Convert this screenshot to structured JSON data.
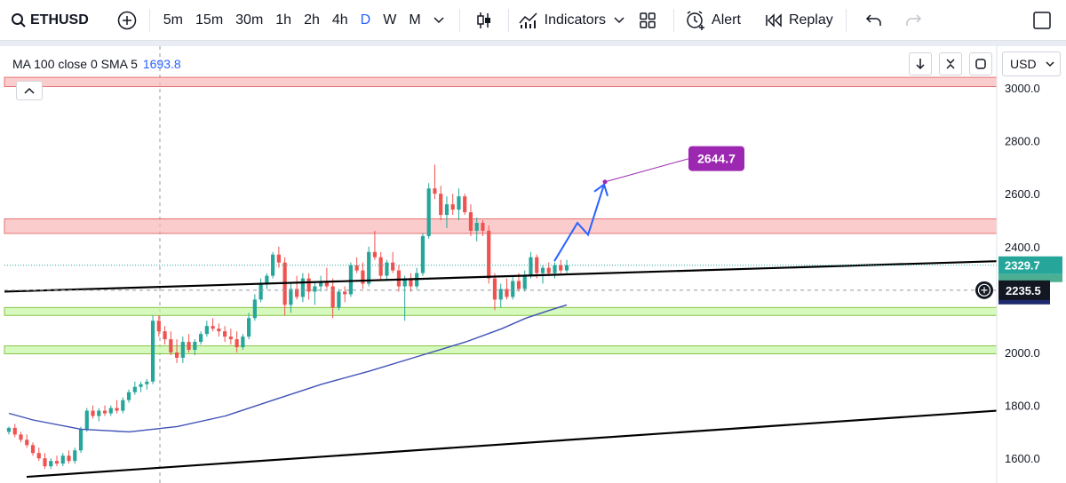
{
  "toolbar": {
    "symbol": "ETHUSD",
    "timeframes": [
      "5m",
      "15m",
      "30m",
      "1h",
      "2h",
      "4h",
      "D",
      "W",
      "M"
    ],
    "active_timeframe": "D",
    "indicators_label": "Indicators",
    "alert_label": "Alert",
    "replay_label": "Replay"
  },
  "legend": {
    "indicator": "MA 100 close 0 SMA 5",
    "value": "1693.8"
  },
  "currency": "USD",
  "colors": {
    "up": "#26a69a",
    "down": "#ef5350",
    "ma": "#3f51b5",
    "accent": "#2962ff",
    "target": "#9c27b0",
    "zone_red": "#f8bbbb",
    "zone_green": "#c8f7a8"
  },
  "chart_data": {
    "type": "candlestick",
    "symbol": "ETHUSD",
    "interval": "D",
    "y_axis": {
      "ticks": [
        "3000.0",
        "2800.0",
        "2600.0",
        "2400.0",
        "2000.0",
        "1800.0",
        "1600.0"
      ],
      "range": [
        1540,
        3150
      ]
    },
    "badges": {
      "last_price": "2329.7",
      "crosshair_price": "2235.5",
      "target": "2644.7"
    },
    "candles": [
      [
        1700,
        1720,
        1690,
        1715
      ],
      [
        1715,
        1730,
        1680,
        1690
      ],
      [
        1690,
        1700,
        1660,
        1670
      ],
      [
        1670,
        1690,
        1640,
        1650
      ],
      [
        1650,
        1660,
        1610,
        1620
      ],
      [
        1620,
        1640,
        1590,
        1600
      ],
      [
        1600,
        1620,
        1560,
        1570
      ],
      [
        1570,
        1600,
        1560,
        1590
      ],
      [
        1590,
        1610,
        1570,
        1580
      ],
      [
        1580,
        1620,
        1570,
        1610
      ],
      [
        1610,
        1630,
        1580,
        1590
      ],
      [
        1590,
        1640,
        1580,
        1630
      ],
      [
        1630,
        1720,
        1620,
        1710
      ],
      [
        1710,
        1790,
        1700,
        1780
      ],
      [
        1780,
        1800,
        1750,
        1760
      ],
      [
        1760,
        1790,
        1740,
        1780
      ],
      [
        1780,
        1800,
        1760,
        1770
      ],
      [
        1770,
        1800,
        1760,
        1790
      ],
      [
        1790,
        1820,
        1770,
        1780
      ],
      [
        1780,
        1830,
        1770,
        1820
      ],
      [
        1820,
        1860,
        1810,
        1850
      ],
      [
        1850,
        1890,
        1840,
        1870
      ],
      [
        1870,
        1890,
        1850,
        1880
      ],
      [
        1880,
        1900,
        1860,
        1890
      ],
      [
        1890,
        2140,
        1880,
        2120
      ],
      [
        2120,
        2140,
        2060,
        2080
      ],
      [
        2080,
        2100,
        2030,
        2050
      ],
      [
        2050,
        2080,
        1990,
        2000
      ],
      [
        2000,
        2050,
        1960,
        1980
      ],
      [
        1980,
        2060,
        1960,
        2040
      ],
      [
        2040,
        2070,
        2000,
        2010
      ],
      [
        2010,
        2050,
        1990,
        2040
      ],
      [
        2040,
        2080,
        2030,
        2070
      ],
      [
        2070,
        2120,
        2060,
        2100
      ],
      [
        2100,
        2130,
        2080,
        2090
      ],
      [
        2090,
        2110,
        2060,
        2080
      ],
      [
        2080,
        2100,
        2040,
        2060
      ],
      [
        2060,
        2090,
        2030,
        2050
      ],
      [
        2050,
        2080,
        2000,
        2020
      ],
      [
        2020,
        2070,
        2010,
        2060
      ],
      [
        2060,
        2150,
        2050,
        2130
      ],
      [
        2130,
        2220,
        2120,
        2200
      ],
      [
        2200,
        2280,
        2190,
        2260
      ],
      [
        2260,
        2300,
        2240,
        2290
      ],
      [
        2290,
        2380,
        2280,
        2370
      ],
      [
        2370,
        2400,
        2320,
        2340
      ],
      [
        2340,
        2360,
        2140,
        2180
      ],
      [
        2180,
        2260,
        2150,
        2240
      ],
      [
        2240,
        2290,
        2200,
        2210
      ],
      [
        2210,
        2300,
        2190,
        2280
      ],
      [
        2280,
        2300,
        2200,
        2230
      ],
      [
        2230,
        2270,
        2180,
        2250
      ],
      [
        2250,
        2290,
        2230,
        2270
      ],
      [
        2270,
        2320,
        2240,
        2250
      ],
      [
        2250,
        2280,
        2130,
        2170
      ],
      [
        2170,
        2240,
        2160,
        2230
      ],
      [
        2230,
        2250,
        2190,
        2220
      ],
      [
        2220,
        2340,
        2210,
        2330
      ],
      [
        2330,
        2360,
        2300,
        2310
      ],
      [
        2310,
        2340,
        2240,
        2260
      ],
      [
        2260,
        2400,
        2250,
        2380
      ],
      [
        2380,
        2460,
        2350,
        2360
      ],
      [
        2360,
        2380,
        2270,
        2290
      ],
      [
        2290,
        2350,
        2270,
        2340
      ],
      [
        2340,
        2380,
        2300,
        2310
      ],
      [
        2310,
        2330,
        2230,
        2250
      ],
      [
        2250,
        2290,
        2120,
        2280
      ],
      [
        2280,
        2300,
        2230,
        2250
      ],
      [
        2250,
        2320,
        2240,
        2300
      ],
      [
        2300,
        2450,
        2290,
        2440
      ],
      [
        2440,
        2640,
        2430,
        2620
      ],
      [
        2620,
        2710,
        2580,
        2600
      ],
      [
        2600,
        2630,
        2500,
        2520
      ],
      [
        2520,
        2590,
        2470,
        2560
      ],
      [
        2560,
        2600,
        2520,
        2540
      ],
      [
        2540,
        2620,
        2500,
        2590
      ],
      [
        2590,
        2600,
        2520,
        2530
      ],
      [
        2530,
        2560,
        2440,
        2460
      ],
      [
        2460,
        2510,
        2420,
        2490
      ],
      [
        2490,
        2500,
        2440,
        2460
      ],
      [
        2460,
        2480,
        2260,
        2280
      ],
      [
        2280,
        2300,
        2160,
        2200
      ],
      [
        2200,
        2260,
        2170,
        2240
      ],
      [
        2240,
        2280,
        2200,
        2210
      ],
      [
        2210,
        2290,
        2200,
        2270
      ],
      [
        2270,
        2300,
        2230,
        2240
      ],
      [
        2240,
        2310,
        2230,
        2290
      ],
      [
        2290,
        2380,
        2280,
        2360
      ],
      [
        2360,
        2370,
        2280,
        2300
      ],
      [
        2300,
        2330,
        2260,
        2320
      ],
      [
        2320,
        2340,
        2290,
        2300
      ],
      [
        2300,
        2340,
        2280,
        2330
      ],
      [
        2330,
        2350,
        2300,
        2310
      ],
      [
        2310,
        2350,
        2300,
        2330
      ]
    ],
    "ma100": [
      [
        0,
        1770
      ],
      [
        10,
        1745
      ],
      [
        30,
        1710
      ],
      [
        50,
        1700
      ],
      [
        70,
        1720
      ],
      [
        90,
        1760
      ],
      [
        110,
        1820
      ],
      [
        130,
        1880
      ],
      [
        150,
        1930
      ],
      [
        170,
        1985
      ],
      [
        190,
        2040
      ],
      [
        205,
        2090
      ],
      [
        215,
        2130
      ],
      [
        225,
        2160
      ],
      [
        232,
        2180
      ]
    ]
  }
}
